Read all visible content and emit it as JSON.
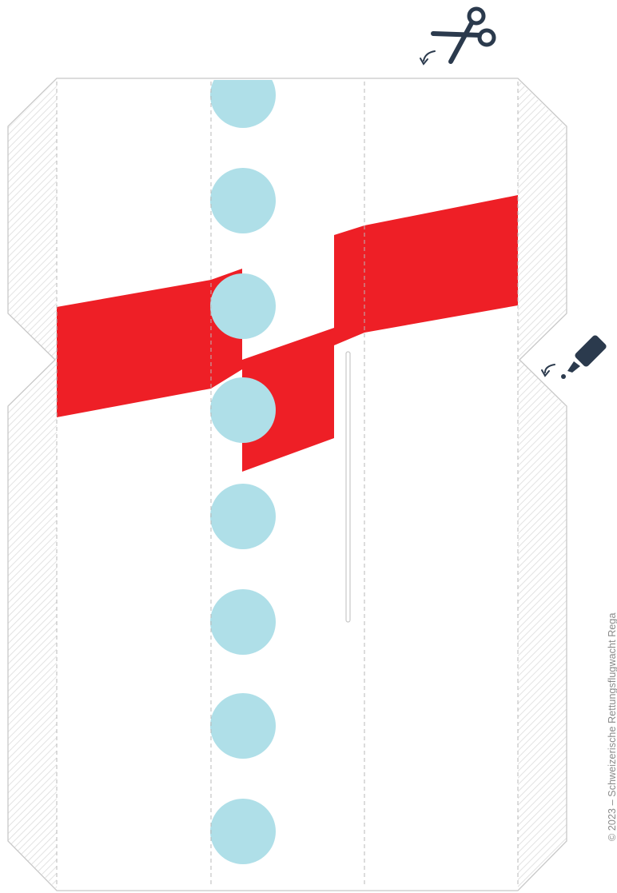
{
  "copyright": "© 2023 – Schweizerische Rettungsflugwacht Rega",
  "icons": {
    "cut": "scissors-icon",
    "glue": "glue-bottle-icon"
  },
  "colors": {
    "cut_outline": "#c8c8c8",
    "fold_line": "#b9b9b9",
    "glue_hatch": "#dcdcdc",
    "stripe": "#ee1f26",
    "windows": "#afdfe8",
    "icons": "#2b3a4d"
  },
  "windows_count": 8
}
